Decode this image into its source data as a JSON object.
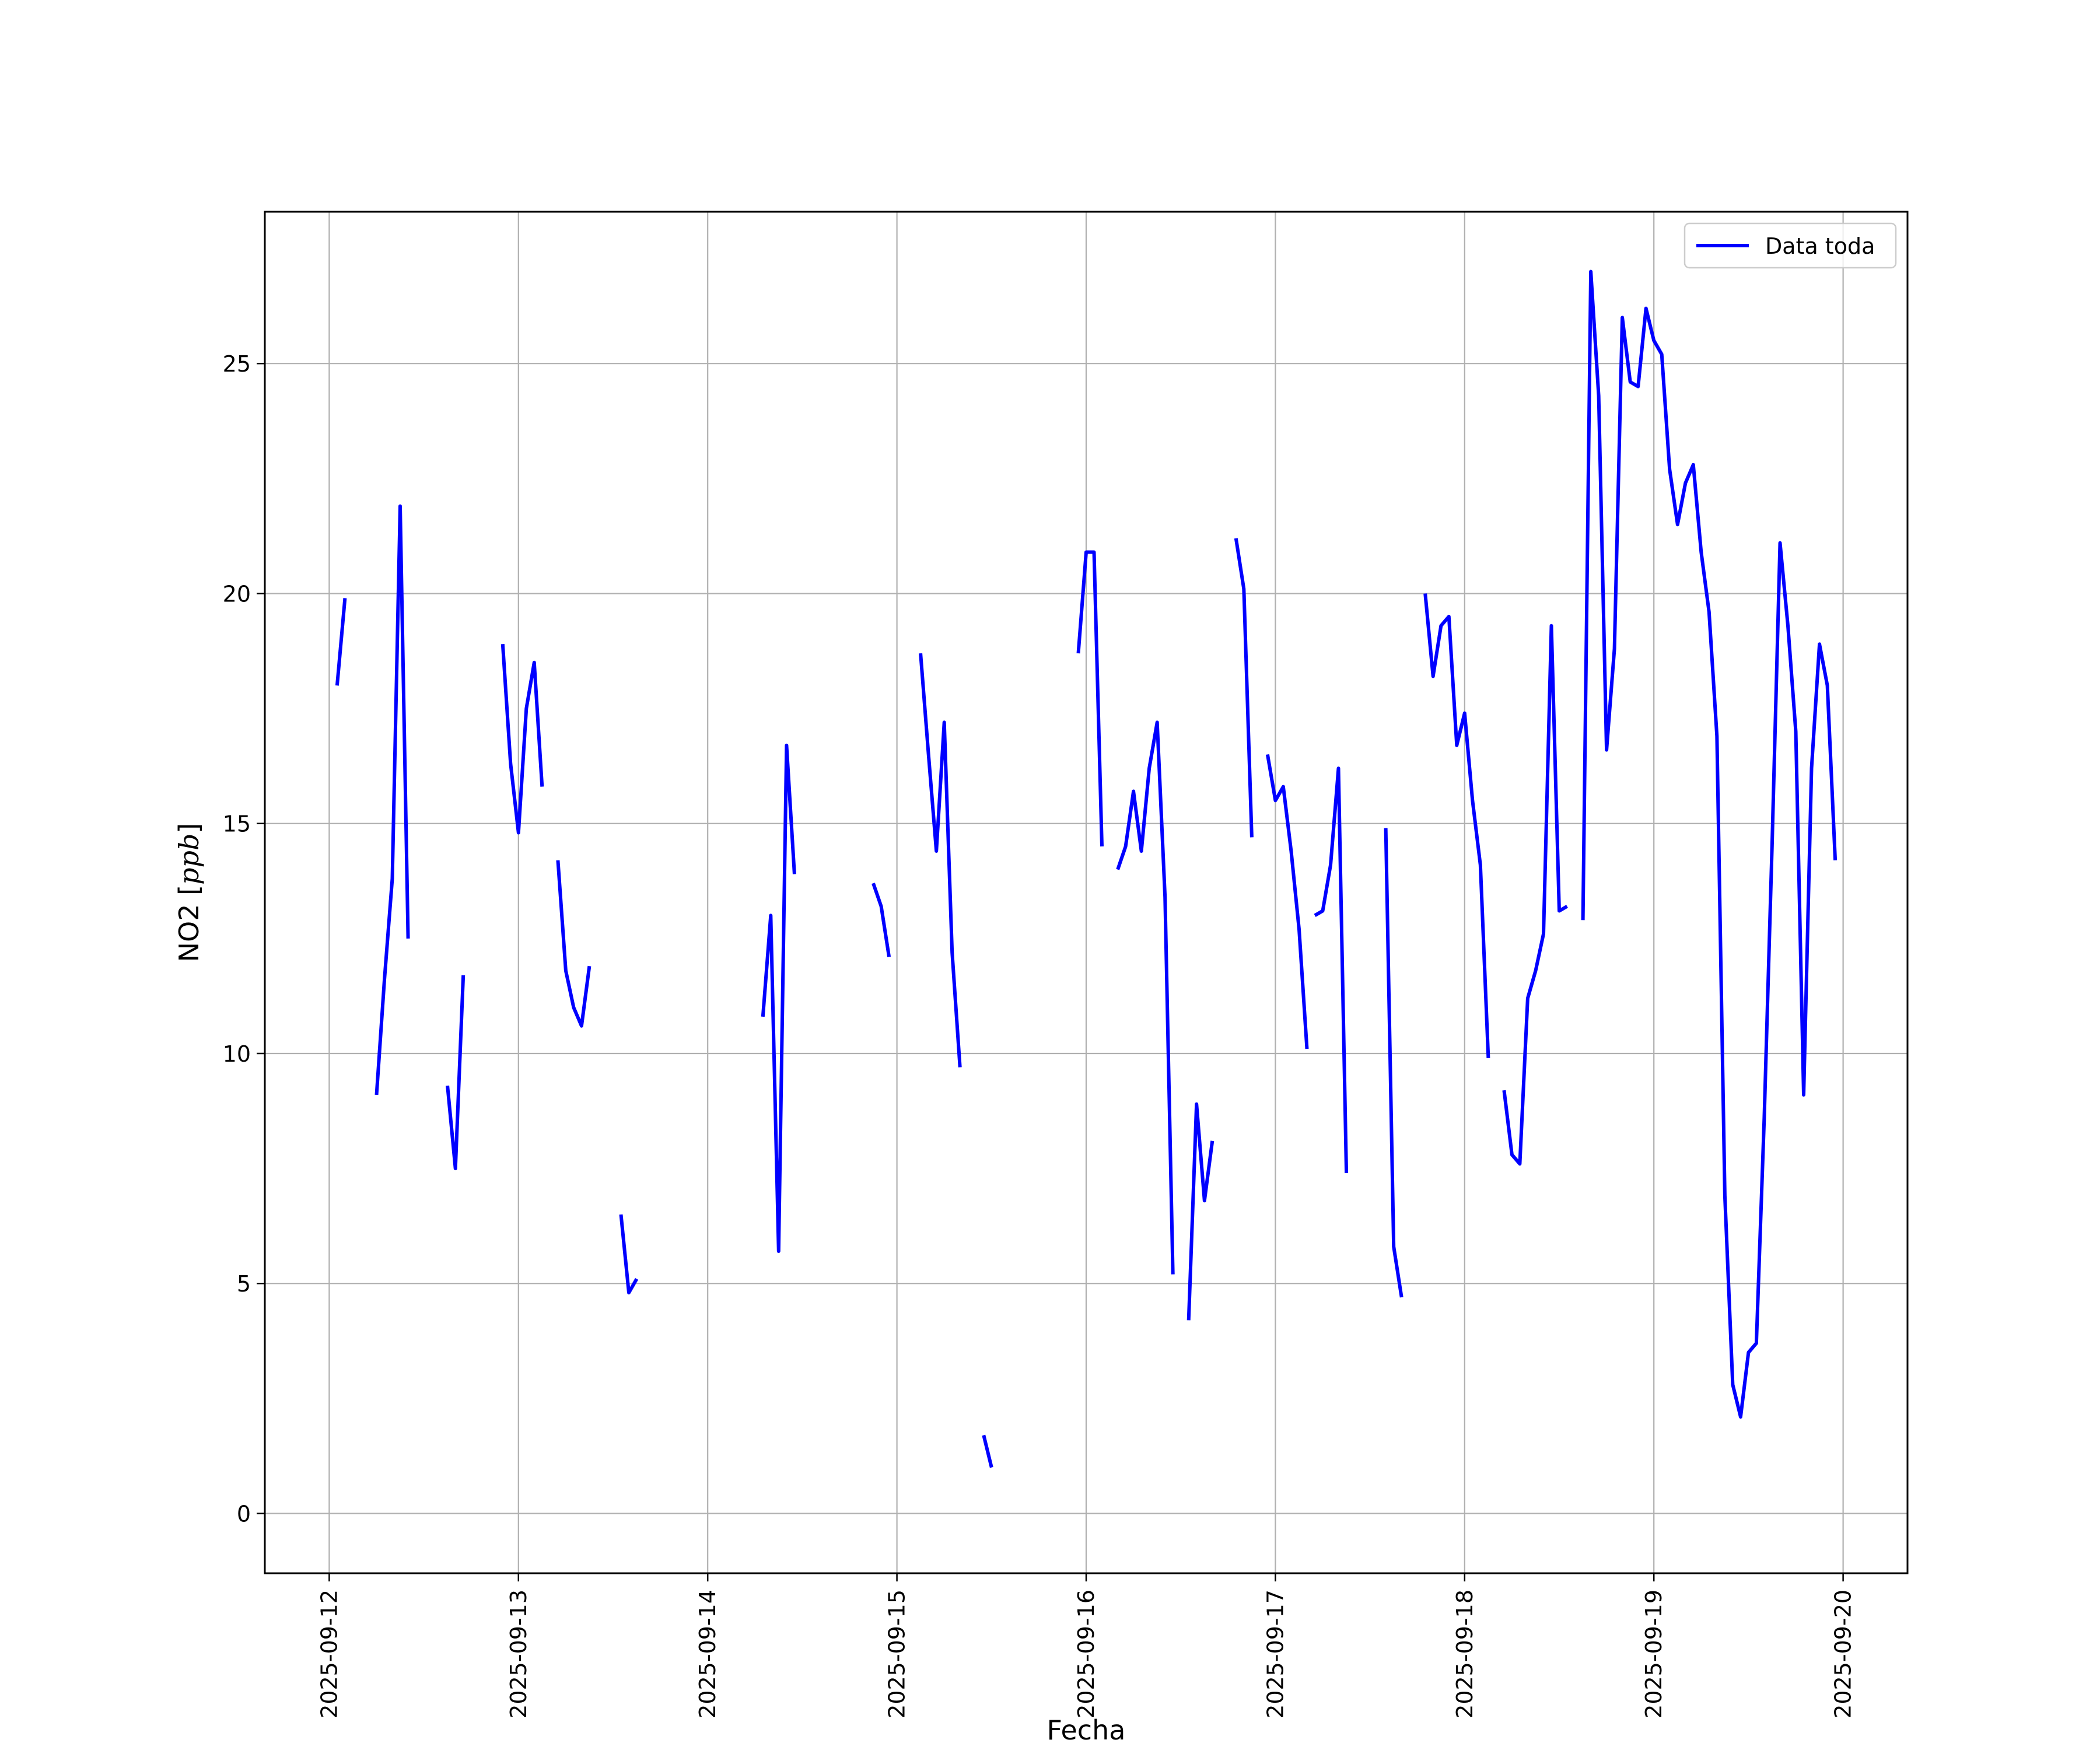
{
  "chart_data": {
    "type": "line",
    "title": "",
    "xlabel": "Fecha",
    "ylabel": "NO2 [ppb]",
    "ylabel_parts": [
      "NO2 [",
      "ppb",
      "]"
    ],
    "xlim": [
      "2025-09-11T15:50",
      "2025-09-20T08:10"
    ],
    "ylim": [
      -1.3,
      28.3
    ],
    "x_ticks": [
      "2025-09-12",
      "2025-09-13",
      "2025-09-14",
      "2025-09-15",
      "2025-09-16",
      "2025-09-17",
      "2025-09-18",
      "2025-09-19",
      "2025-09-20"
    ],
    "y_ticks": [
      0,
      5,
      10,
      15,
      20,
      25
    ],
    "grid": true,
    "legend_position": "top-right",
    "colors": {
      "series": "#0000ff",
      "grid": "#b0b0b0",
      "axes": "#000000"
    },
    "series": [
      {
        "name": "Data toda",
        "segments": [
          [
            [
              "2025-09-12T01:00",
              18.0
            ],
            [
              "2025-09-12T02:00",
              19.9
            ]
          ],
          [
            [
              "2025-09-12T06:00",
              9.1
            ],
            [
              "2025-09-12T07:00",
              11.6
            ],
            [
              "2025-09-12T08:00",
              13.8
            ],
            [
              "2025-09-12T09:00",
              21.9
            ],
            [
              "2025-09-12T10:00",
              12.5
            ]
          ],
          [
            [
              "2025-09-12T15:00",
              9.3
            ],
            [
              "2025-09-12T16:00",
              7.5
            ],
            [
              "2025-09-12T17:00",
              11.7
            ]
          ],
          [
            [
              "2025-09-12T22:00",
              18.9
            ],
            [
              "2025-09-12T23:00",
              16.3
            ],
            [
              "2025-09-13T00:00",
              14.8
            ],
            [
              "2025-09-13T01:00",
              17.5
            ],
            [
              "2025-09-13T02:00",
              18.5
            ],
            [
              "2025-09-13T03:00",
              15.8
            ]
          ],
          [
            [
              "2025-09-13T05:00",
              14.2
            ],
            [
              "2025-09-13T06:00",
              11.8
            ],
            [
              "2025-09-13T07:00",
              11.0
            ],
            [
              "2025-09-13T08:00",
              10.6
            ],
            [
              "2025-09-13T09:00",
              11.9
            ]
          ],
          [
            [
              "2025-09-13T13:00",
              6.5
            ],
            [
              "2025-09-13T14:00",
              4.8
            ],
            [
              "2025-09-13T15:00",
              5.1
            ]
          ],
          [
            [
              "2025-09-14T07:00",
              10.8
            ],
            [
              "2025-09-14T08:00",
              13.0
            ],
            [
              "2025-09-14T09:00",
              5.7
            ],
            [
              "2025-09-14T10:00",
              16.7
            ],
            [
              "2025-09-14T11:00",
              13.9
            ]
          ],
          [
            [
              "2025-09-14T21:00",
              13.7
            ],
            [
              "2025-09-14T22:00",
              13.2
            ],
            [
              "2025-09-14T23:00",
              12.1
            ]
          ],
          [
            [
              "2025-09-15T03:00",
              18.7
            ],
            [
              "2025-09-15T04:00",
              16.5
            ],
            [
              "2025-09-15T05:00",
              14.4
            ],
            [
              "2025-09-15T06:00",
              17.2
            ],
            [
              "2025-09-15T07:00",
              12.2
            ],
            [
              "2025-09-15T08:00",
              9.7
            ]
          ],
          [
            [
              "2025-09-15T11:00",
              1.7
            ],
            [
              "2025-09-15T12:00",
              1.0
            ]
          ],
          [
            [
              "2025-09-15T23:00",
              18.7
            ],
            [
              "2025-09-16T00:00",
              20.9
            ],
            [
              "2025-09-16T01:00",
              20.9
            ],
            [
              "2025-09-16T02:00",
              14.5
            ]
          ],
          [
            [
              "2025-09-16T04:00",
              14.0
            ],
            [
              "2025-09-16T05:00",
              14.5
            ],
            [
              "2025-09-16T06:00",
              15.7
            ],
            [
              "2025-09-16T07:00",
              14.4
            ],
            [
              "2025-09-16T08:00",
              16.2
            ],
            [
              "2025-09-16T09:00",
              17.2
            ],
            [
              "2025-09-16T10:00",
              13.4
            ],
            [
              "2025-09-16T11:00",
              5.2
            ]
          ],
          [
            [
              "2025-09-16T13:00",
              4.2
            ],
            [
              "2025-09-16T14:00",
              8.9
            ],
            [
              "2025-09-16T15:00",
              6.8
            ],
            [
              "2025-09-16T16:00",
              8.1
            ]
          ],
          [
            [
              "2025-09-16T19:00",
              21.2
            ],
            [
              "2025-09-16T20:00",
              20.1
            ],
            [
              "2025-09-16T21:00",
              14.7
            ]
          ],
          [
            [
              "2025-09-16T23:00",
              16.5
            ],
            [
              "2025-09-17T00:00",
              15.5
            ],
            [
              "2025-09-17T01:00",
              15.8
            ],
            [
              "2025-09-17T02:00",
              14.4
            ],
            [
              "2025-09-17T03:00",
              12.7
            ],
            [
              "2025-09-17T04:00",
              10.1
            ]
          ],
          [
            [
              "2025-09-17T05:00",
              13.0
            ],
            [
              "2025-09-17T06:00",
              13.1
            ],
            [
              "2025-09-17T07:00",
              14.1
            ],
            [
              "2025-09-17T08:00",
              16.2
            ],
            [
              "2025-09-17T09:00",
              7.4
            ]
          ],
          [
            [
              "2025-09-17T14:00",
              14.9
            ],
            [
              "2025-09-17T15:00",
              5.8
            ],
            [
              "2025-09-17T16:00",
              4.7
            ]
          ],
          [
            [
              "2025-09-17T19:00",
              20.0
            ],
            [
              "2025-09-17T20:00",
              18.2
            ],
            [
              "2025-09-17T21:00",
              19.3
            ],
            [
              "2025-09-17T22:00",
              19.5
            ],
            [
              "2025-09-17T23:00",
              16.7
            ],
            [
              "2025-09-18T00:00",
              17.4
            ],
            [
              "2025-09-18T01:00",
              15.5
            ],
            [
              "2025-09-18T02:00",
              14.1
            ],
            [
              "2025-09-18T03:00",
              9.9
            ]
          ],
          [
            [
              "2025-09-18T05:00",
              9.2
            ],
            [
              "2025-09-18T06:00",
              7.8
            ],
            [
              "2025-09-18T07:00",
              7.6
            ],
            [
              "2025-09-18T08:00",
              11.2
            ],
            [
              "2025-09-18T09:00",
              11.8
            ],
            [
              "2025-09-18T10:00",
              12.6
            ],
            [
              "2025-09-18T11:00",
              19.3
            ],
            [
              "2025-09-18T12:00",
              13.1
            ],
            [
              "2025-09-18T13:00",
              13.2
            ]
          ],
          [
            [
              "2025-09-18T15:00",
              12.9
            ],
            [
              "2025-09-18T16:00",
              27.0
            ],
            [
              "2025-09-18T17:00",
              24.3
            ],
            [
              "2025-09-18T18:00",
              16.6
            ],
            [
              "2025-09-18T19:00",
              18.8
            ],
            [
              "2025-09-18T20:00",
              26.0
            ],
            [
              "2025-09-18T21:00",
              24.6
            ],
            [
              "2025-09-18T22:00",
              24.5
            ],
            [
              "2025-09-18T23:00",
              26.2
            ],
            [
              "2025-09-19T00:00",
              25.5
            ],
            [
              "2025-09-19T01:00",
              25.2
            ],
            [
              "2025-09-19T02:00",
              22.7
            ],
            [
              "2025-09-19T03:00",
              21.5
            ],
            [
              "2025-09-19T04:00",
              22.4
            ],
            [
              "2025-09-19T05:00",
              22.8
            ],
            [
              "2025-09-19T06:00",
              20.9
            ],
            [
              "2025-09-19T07:00",
              19.6
            ],
            [
              "2025-09-19T08:00",
              16.9
            ],
            [
              "2025-09-19T09:00",
              6.9
            ],
            [
              "2025-09-19T10:00",
              2.8
            ],
            [
              "2025-09-19T11:00",
              2.1
            ],
            [
              "2025-09-19T12:00",
              3.5
            ],
            [
              "2025-09-19T13:00",
              3.7
            ],
            [
              "2025-09-19T14:00",
              8.6
            ],
            [
              "2025-09-19T15:00",
              14.6
            ],
            [
              "2025-09-19T16:00",
              21.1
            ],
            [
              "2025-09-19T17:00",
              19.3
            ],
            [
              "2025-09-19T18:00",
              17.0
            ],
            [
              "2025-09-19T19:00",
              9.1
            ],
            [
              "2025-09-19T20:00",
              16.2
            ],
            [
              "2025-09-19T21:00",
              18.9
            ],
            [
              "2025-09-19T22:00",
              18.0
            ],
            [
              "2025-09-19T23:00",
              14.2
            ]
          ]
        ]
      }
    ]
  }
}
